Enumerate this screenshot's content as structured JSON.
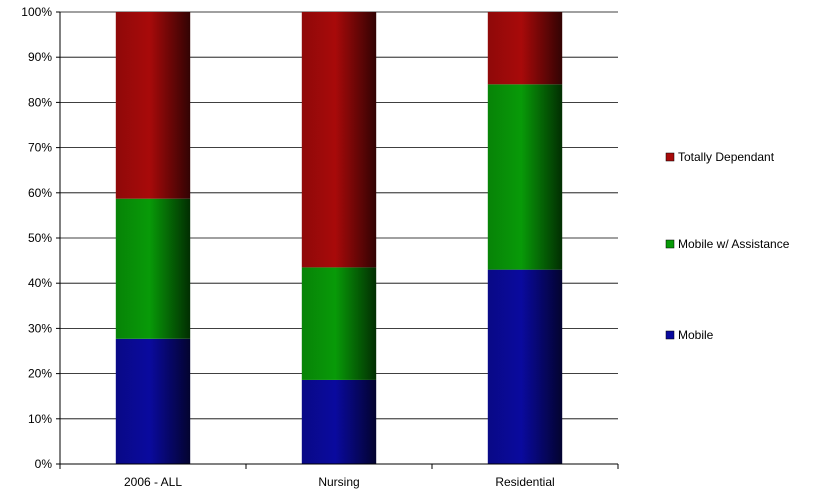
{
  "chart_data": {
    "type": "bar",
    "stacked": true,
    "percent_stacked": true,
    "categories": [
      "2006 - ALL",
      "Nursing",
      "Residential"
    ],
    "series": [
      {
        "name": "Mobile",
        "color": "#0a0a9e",
        "values": [
          27.7,
          18.6,
          43.0
        ]
      },
      {
        "name": "Mobile w/ Assistance",
        "color": "#089a08",
        "values": [
          31.0,
          24.9,
          41.0
        ]
      },
      {
        "name": "Totally Dependant",
        "color": "#a80a0a",
        "values": [
          41.3,
          56.5,
          16.0
        ]
      }
    ],
    "y_ticks": [
      "0%",
      "10%",
      "20%",
      "30%",
      "40%",
      "50%",
      "60%",
      "70%",
      "80%",
      "90%",
      "100%"
    ],
    "ylim": [
      0,
      100
    ],
    "grid": true,
    "legend_position": "right",
    "legend_order": [
      "Totally Dependant",
      "Mobile w/ Assistance",
      "Mobile"
    ]
  }
}
